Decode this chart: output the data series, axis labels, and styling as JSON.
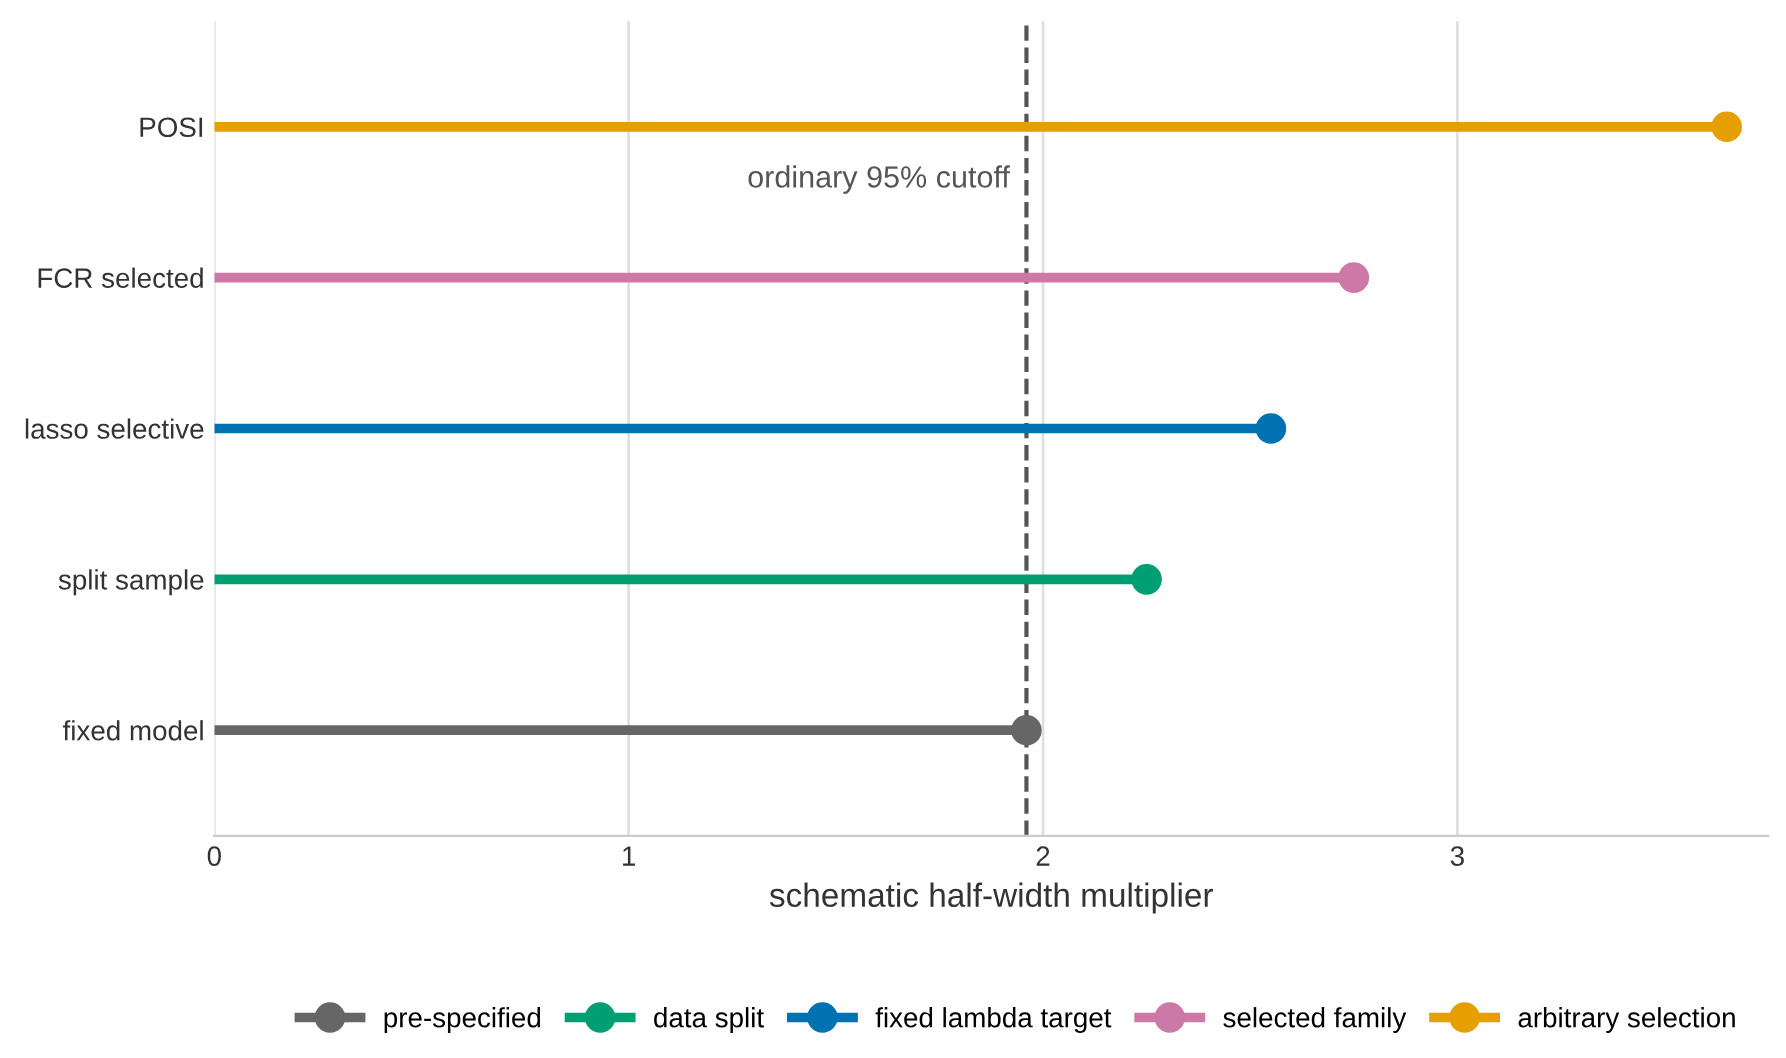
{
  "chart_data": {
    "type": "lollipop",
    "orientation": "horizontal",
    "xlabel": "schematic half-width multiplier",
    "categories": [
      "POSI",
      "FCR selected",
      "lasso selective",
      "split sample",
      "fixed model"
    ],
    "series": [
      {
        "name": "pre-specified",
        "color": "#666666",
        "values": [
          null,
          null,
          null,
          null,
          1.96
        ]
      },
      {
        "name": "data split",
        "color": "#009e73",
        "values": [
          null,
          null,
          null,
          2.25,
          null
        ]
      },
      {
        "name": "fixed lambda target",
        "color": "#0072b2",
        "values": [
          null,
          null,
          2.55,
          null,
          null
        ]
      },
      {
        "name": "selected family",
        "color": "#cc79a7",
        "values": [
          null,
          2.75,
          null,
          null,
          null
        ]
      },
      {
        "name": "arbitrary selection",
        "color": "#e69f00",
        "values": [
          3.65,
          null,
          null,
          null,
          null
        ]
      }
    ],
    "xlim": [
      0,
      3.75
    ],
    "xticks": [
      0,
      1,
      2,
      3
    ],
    "grid": "x",
    "legend": "bottom",
    "marker": "circle",
    "ref_lines": [
      {
        "axis": "x",
        "value": 1.96,
        "label": "ordinary 95% cutoff",
        "color": "#555555",
        "line_style": "dashed"
      }
    ]
  }
}
